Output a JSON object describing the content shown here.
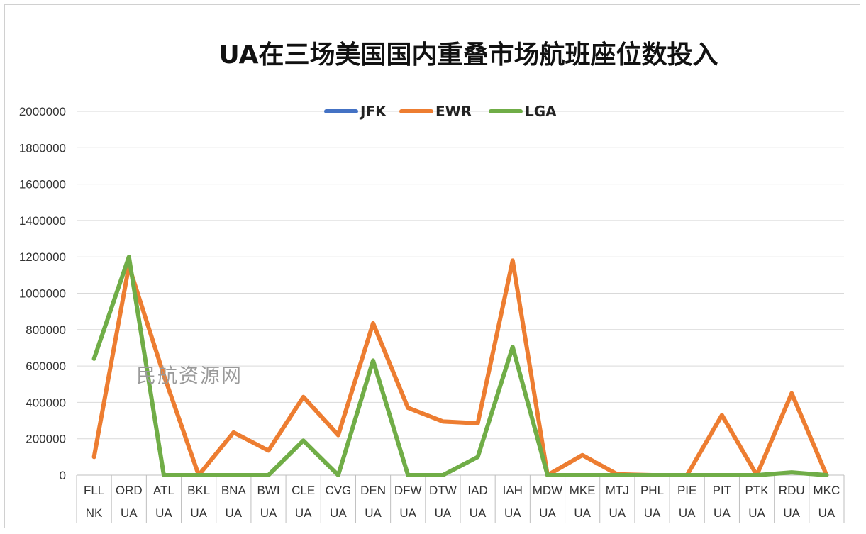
{
  "chart_data": {
    "type": "line",
    "title": "UA在三场美国国内重叠市场航班座位数投入",
    "categories": [
      [
        "FLL",
        "NK"
      ],
      [
        "ORD",
        "UA"
      ],
      [
        "ATL",
        "UA"
      ],
      [
        "BKL",
        "UA"
      ],
      [
        "BNA",
        "UA"
      ],
      [
        "BWI",
        "UA"
      ],
      [
        "CLE",
        "UA"
      ],
      [
        "CVG",
        "UA"
      ],
      [
        "DEN",
        "UA"
      ],
      [
        "DFW",
        "UA"
      ],
      [
        "DTW",
        "UA"
      ],
      [
        "IAD",
        "UA"
      ],
      [
        "IAH",
        "UA"
      ],
      [
        "MDW",
        "UA"
      ],
      [
        "MKE",
        "UA"
      ],
      [
        "MTJ",
        "UA"
      ],
      [
        "PHL",
        "UA"
      ],
      [
        "PIE",
        "UA"
      ],
      [
        "PIT",
        "UA"
      ],
      [
        "PTK",
        "UA"
      ],
      [
        "RDU",
        "UA"
      ],
      [
        "MKC",
        "UA"
      ]
    ],
    "ylim": [
      0,
      2000000
    ],
    "yticks": [
      "0",
      "200000",
      "400000",
      "600000",
      "800000",
      "1000000",
      "1200000",
      "1400000",
      "1600000",
      "1800000",
      "2000000"
    ],
    "grid": true,
    "legend_position": "top",
    "series": [
      {
        "name": "JFK",
        "color": "#4472C4",
        "values": [
          null,
          null,
          null,
          null,
          null,
          null,
          null,
          null,
          null,
          null,
          null,
          null,
          null,
          null,
          null,
          null,
          null,
          null,
          null,
          null,
          null,
          null
        ]
      },
      {
        "name": "EWR",
        "color": "#ED7D31",
        "values": [
          100000,
          1150000,
          550000,
          0,
          235000,
          135000,
          430000,
          220000,
          835000,
          370000,
          295000,
          285000,
          1180000,
          0,
          110000,
          5000,
          0,
          0,
          330000,
          0,
          450000,
          0
        ]
      },
      {
        "name": "LGA",
        "color": "#70AD47",
        "values": [
          640000,
          1200000,
          0,
          0,
          0,
          0,
          190000,
          0,
          630000,
          0,
          0,
          100000,
          705000,
          0,
          0,
          0,
          0,
          0,
          0,
          0,
          15000,
          0
        ]
      }
    ]
  },
  "watermark": "民航资源网"
}
